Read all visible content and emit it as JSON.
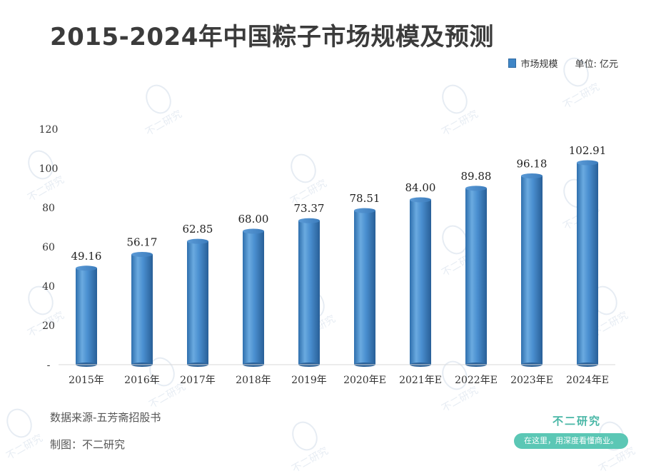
{
  "title": "2015-2024年中国粽子市场规模及预测",
  "legend": {
    "series_label": "市场规模",
    "unit_label": "单位: 亿元",
    "color": "#3f86c7"
  },
  "chart_data": {
    "type": "bar",
    "categories": [
      "2015年",
      "2016年",
      "2017年",
      "2018年",
      "2019年",
      "2020年E",
      "2021年E",
      "2022年E",
      "2023年E",
      "2024年E"
    ],
    "series": [
      {
        "name": "市场规模",
        "values": [
          49.16,
          56.17,
          62.85,
          68.0,
          73.37,
          78.51,
          84.0,
          89.88,
          96.18,
          102.91
        ]
      }
    ],
    "value_labels": [
      "49.16",
      "56.17",
      "62.85",
      "68.00",
      "73.37",
      "78.51",
      "84.00",
      "89.88",
      "96.18",
      "102.91"
    ],
    "ylim": [
      0,
      120
    ],
    "yticks": [
      "-",
      "20",
      "40",
      "60",
      "80",
      "100",
      "120"
    ],
    "ytick_values": [
      0,
      20,
      40,
      60,
      80,
      100,
      120
    ],
    "xlabel": "",
    "ylabel": "",
    "grid": false,
    "legend_position": "top-right"
  },
  "footer": {
    "source": "数据来源-五芳斋招股书",
    "author": "制图：不二研究"
  },
  "brand": {
    "name": "不二研究",
    "slogan": "在这里，用深度看懂商业。"
  },
  "watermark": {
    "text": "不二研究"
  }
}
